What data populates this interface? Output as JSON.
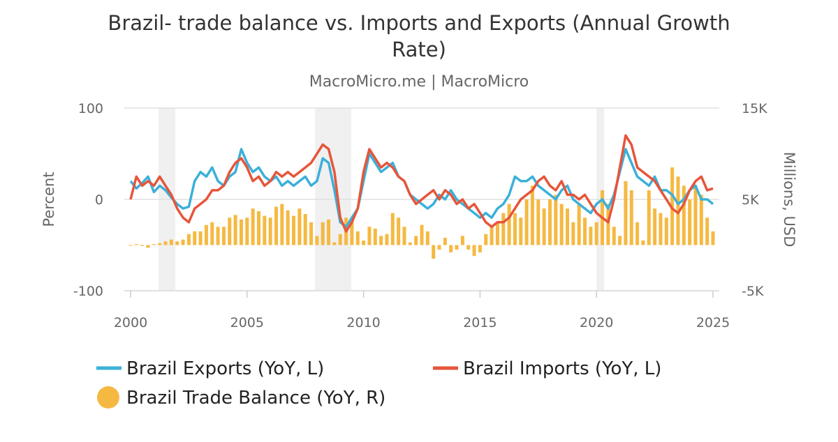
{
  "chart_data": {
    "type": "line+bar",
    "title": "Brazil- trade balance vs. Imports and Exports (Annual Growth Rate)",
    "title_lines": [
      "Brazil- trade balance vs. Imports and Exports (Annual Growth",
      "Rate)"
    ],
    "subtitle": "MacroMicro.me | MacroMicro",
    "ylabel_left": "Percent",
    "ylabel_right": "Millions, USD",
    "ylim_left": [
      -100,
      100
    ],
    "ylim_right": [
      -5000,
      15000
    ],
    "xlim": [
      2000,
      2025
    ],
    "x_ticks": [
      "2000",
      "2005",
      "2010",
      "2015",
      "2020",
      "2025"
    ],
    "y_ticks_left": [
      "100",
      "0",
      "-100"
    ],
    "y_ticks_right": [
      "15K",
      "5K",
      "-5K"
    ],
    "grid": true,
    "legend_position": "bottom",
    "shaded_periods": [
      [
        2001.2,
        2001.92
      ],
      [
        2007.92,
        2009.47
      ],
      [
        2020.0,
        2020.33
      ]
    ],
    "dates": [
      "2000-01",
      "2000-04",
      "2000-07",
      "2000-10",
      "2001-01",
      "2001-04",
      "2001-07",
      "2001-10",
      "2002-01",
      "2002-04",
      "2002-07",
      "2002-10",
      "2003-01",
      "2003-04",
      "2003-07",
      "2003-10",
      "2004-01",
      "2004-04",
      "2004-07",
      "2004-10",
      "2005-01",
      "2005-04",
      "2005-07",
      "2005-10",
      "2006-01",
      "2006-04",
      "2006-07",
      "2006-10",
      "2007-01",
      "2007-04",
      "2007-07",
      "2007-10",
      "2008-01",
      "2008-04",
      "2008-07",
      "2008-10",
      "2009-01",
      "2009-04",
      "2009-07",
      "2009-10",
      "2010-01",
      "2010-04",
      "2010-07",
      "2010-10",
      "2011-01",
      "2011-04",
      "2011-07",
      "2011-10",
      "2012-01",
      "2012-04",
      "2012-07",
      "2012-10",
      "2013-01",
      "2013-04",
      "2013-07",
      "2013-10",
      "2014-01",
      "2014-04",
      "2014-07",
      "2014-10",
      "2015-01",
      "2015-04",
      "2015-07",
      "2015-10",
      "2016-01",
      "2016-04",
      "2016-07",
      "2016-10",
      "2017-01",
      "2017-04",
      "2017-07",
      "2017-10",
      "2018-01",
      "2018-04",
      "2018-07",
      "2018-10",
      "2019-01",
      "2019-04",
      "2019-07",
      "2019-10",
      "2020-01",
      "2020-04",
      "2020-07",
      "2020-10",
      "2021-01",
      "2021-04",
      "2021-07",
      "2021-10",
      "2022-01",
      "2022-04",
      "2022-07",
      "2022-10",
      "2023-01",
      "2023-04",
      "2023-07",
      "2023-10",
      "2024-01",
      "2024-04",
      "2024-07",
      "2024-10",
      "2025-01"
    ],
    "series": [
      {
        "name": "Brazil Exports (YoY, L)",
        "type": "line",
        "axis": "left",
        "color": "#3bb0d9",
        "values": [
          20,
          12,
          18,
          25,
          8,
          15,
          10,
          2,
          -5,
          -10,
          -8,
          20,
          30,
          25,
          35,
          20,
          15,
          25,
          30,
          55,
          40,
          30,
          35,
          25,
          20,
          25,
          15,
          20,
          15,
          20,
          25,
          15,
          20,
          45,
          40,
          10,
          -25,
          -30,
          -20,
          -10,
          20,
          50,
          40,
          30,
          35,
          40,
          25,
          20,
          5,
          0,
          -5,
          -10,
          -5,
          5,
          0,
          10,
          0,
          -5,
          -10,
          -15,
          -20,
          -15,
          -20,
          -10,
          -5,
          5,
          25,
          20,
          20,
          25,
          15,
          10,
          5,
          0,
          10,
          15,
          0,
          -5,
          -10,
          -15,
          -5,
          0,
          -10,
          5,
          30,
          55,
          40,
          25,
          20,
          15,
          25,
          10,
          10,
          5,
          -5,
          0,
          10,
          15,
          0,
          0,
          -5
        ]
      },
      {
        "name": "Brazil Imports (YoY, L)",
        "type": "line",
        "axis": "left",
        "color": "#e6553a",
        "values": [
          0,
          25,
          15,
          20,
          15,
          25,
          15,
          5,
          -10,
          -20,
          -25,
          -10,
          -5,
          0,
          10,
          10,
          15,
          30,
          40,
          45,
          35,
          20,
          25,
          15,
          20,
          30,
          25,
          30,
          25,
          30,
          35,
          40,
          50,
          60,
          55,
          30,
          -20,
          -35,
          -25,
          -10,
          30,
          55,
          45,
          35,
          40,
          35,
          25,
          20,
          5,
          -5,
          0,
          5,
          10,
          0,
          10,
          5,
          -5,
          0,
          -10,
          -5,
          -15,
          -25,
          -30,
          -25,
          -25,
          -20,
          -10,
          0,
          5,
          10,
          20,
          25,
          15,
          10,
          20,
          5,
          5,
          0,
          5,
          -5,
          -15,
          -20,
          -25,
          0,
          35,
          70,
          60,
          35,
          30,
          25,
          20,
          10,
          0,
          -10,
          -15,
          -5,
          10,
          20,
          25,
          10,
          12
        ]
      },
      {
        "name": "Brazil Trade Balance (YoY, R)",
        "type": "bar",
        "axis": "right",
        "color": "#f5b942",
        "values": [
          0,
          100,
          -100,
          -300,
          100,
          200,
          400,
          600,
          400,
          600,
          1200,
          1500,
          1500,
          2200,
          2500,
          2000,
          2000,
          3000,
          3300,
          2800,
          3000,
          4000,
          3700,
          3200,
          3000,
          4200,
          4500,
          3800,
          3200,
          4000,
          3400,
          2500,
          1000,
          2500,
          2800,
          300,
          1200,
          3000,
          2800,
          1500,
          500,
          2000,
          1800,
          1000,
          1200,
          3500,
          3000,
          2000,
          300,
          1000,
          2200,
          1500,
          -1500,
          -500,
          800,
          -800,
          -500,
          1000,
          -500,
          -1200,
          -800,
          1200,
          2000,
          2500,
          3500,
          4500,
          3500,
          3000,
          5000,
          6500,
          5000,
          4000,
          5000,
          5500,
          4500,
          4000,
          2500,
          4500,
          3000,
          2000,
          2500,
          6000,
          4500,
          2000,
          1000,
          7000,
          6000,
          2500,
          500,
          6000,
          4000,
          3500,
          3000,
          8500,
          7500,
          6500,
          5000,
          6500,
          5500,
          3000,
          1500
        ]
      }
    ],
    "legend": [
      {
        "label": "Brazil Exports (YoY, L)",
        "marker": "line",
        "color": "#3bb0d9"
      },
      {
        "label": "Brazil Imports (YoY, L)",
        "marker": "line",
        "color": "#e6553a"
      },
      {
        "label": "Brazil Trade Balance (YoY, R)",
        "marker": "circle",
        "color": "#f5b942"
      }
    ]
  }
}
